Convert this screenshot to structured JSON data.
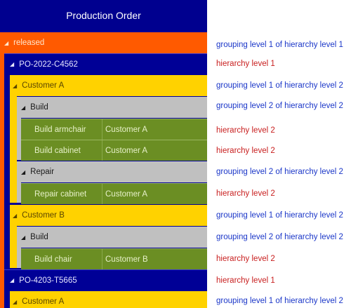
{
  "panel": {
    "title": "Production Order",
    "status_group": "released",
    "orders": [
      {
        "id": "PO-2022-C4562"
      },
      {
        "id": "PO-4203-T5665"
      }
    ],
    "customers": [
      "Customer A",
      "Customer B",
      "Customer A"
    ],
    "activities": [
      "Build",
      "Repair",
      "Build"
    ],
    "items": [
      {
        "name": "Build armchair",
        "customer": "Customer A"
      },
      {
        "name": "Build cabinet",
        "customer": "Customer A"
      },
      {
        "name": "Repair cabinet",
        "customer": "Customer A"
      },
      {
        "name": "Build chair",
        "customer": "Customer B"
      }
    ]
  },
  "annotations": {
    "g1h1": "grouping level 1  of hierarchy level 1",
    "h1": "hierarchy level 1",
    "g1h2": "grouping level 1  of hierarchy level 2",
    "g2h2": "grouping level 2  of hierarchy level 2",
    "h2": "hierarchy level 2"
  },
  "colors": {
    "header": "#00008f",
    "status_group": "#ff5a00",
    "order": "#000096",
    "customer": "#ffd200",
    "activity": "#c0c0c0",
    "leaf": "#6b8e23",
    "annotation_grouping": "#1a36c8",
    "annotation_hierarchy": "#c81e1e"
  }
}
